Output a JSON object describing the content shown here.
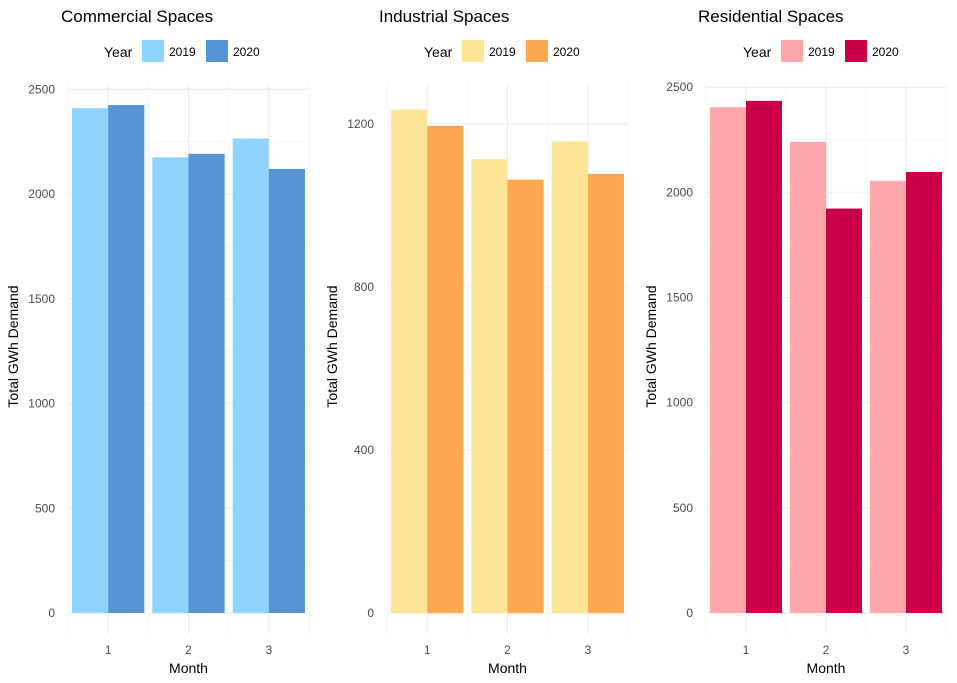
{
  "chart_data": [
    {
      "type": "bar",
      "title": "Commercial Spaces",
      "legend_title": "Year",
      "legend_position": "top",
      "xlabel": "Month",
      "ylabel": "Total GWh Demand",
      "categories": [
        "1",
        "2",
        "3"
      ],
      "ylim": [
        0,
        2530
      ],
      "yticks": [
        0,
        500,
        1000,
        1500,
        2000,
        2500
      ],
      "grid": true,
      "series": [
        {
          "name": "2019",
          "color": "#8fd3fe",
          "values": [
            2410,
            2175,
            2265
          ]
        },
        {
          "name": "2020",
          "color": "#5694d4",
          "values": [
            2425,
            2192,
            2120
          ]
        }
      ]
    },
    {
      "type": "bar",
      "title": "Industrial Spaces",
      "legend_title": "Year",
      "legend_position": "top",
      "xlabel": "Month",
      "ylabel": "Total GWh Demand",
      "categories": [
        "1",
        "2",
        "3"
      ],
      "ylim": [
        0,
        1300
      ],
      "yticks": [
        0,
        400,
        800,
        1200
      ],
      "grid": true,
      "series": [
        {
          "name": "2019",
          "color": "#fde597",
          "values": [
            1235,
            1113,
            1157
          ]
        },
        {
          "name": "2020",
          "color": "#fea752",
          "values": [
            1195,
            1063,
            1077
          ]
        }
      ]
    },
    {
      "type": "bar",
      "title": "Residential Spaces",
      "legend_title": "Year",
      "legend_position": "top",
      "xlabel": "Month",
      "ylabel": "Total GWh Demand",
      "categories": [
        "1",
        "2",
        "3"
      ],
      "ylim": [
        0,
        2520
      ],
      "yticks": [
        0,
        500,
        1000,
        1500,
        2000,
        2500
      ],
      "grid": true,
      "series": [
        {
          "name": "2019",
          "color": "#fea8ab",
          "values": [
            2405,
            2240,
            2055
          ]
        },
        {
          "name": "2020",
          "color": "#c8004a",
          "values": [
            2435,
            1923,
            2097
          ]
        }
      ]
    }
  ]
}
